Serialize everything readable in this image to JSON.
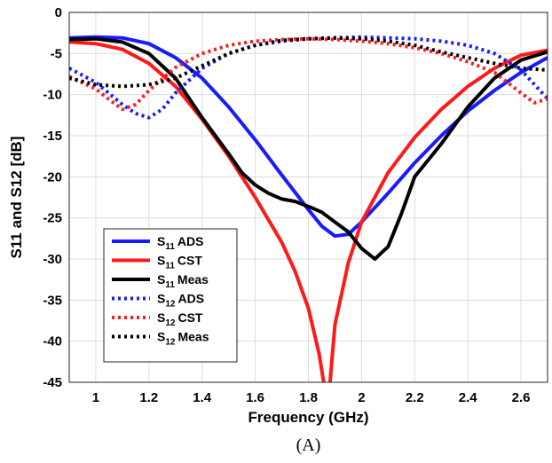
{
  "chart_data": {
    "type": "line",
    "title": "",
    "caption": "(A)",
    "xlabel": "Frequency (GHz)",
    "ylabel": "S11 and S12 [dB]",
    "xlim": [
      0.9,
      2.7
    ],
    "ylim": [
      -45,
      0
    ],
    "grid": true,
    "legend_position": "bottom-left",
    "xticks": [
      1,
      1.2,
      1.4,
      1.6,
      1.8,
      2,
      2.2,
      2.4,
      2.6
    ],
    "yticks": [
      0,
      -5,
      -10,
      -15,
      -20,
      -25,
      -30,
      -35,
      -40,
      -45
    ],
    "series": [
      {
        "name_main": "S",
        "name_sub": "11",
        "name_tail": "ADS",
        "color": "#1a1aff",
        "dash": "solid",
        "points": [
          [
            0.9,
            -3.1
          ],
          [
            1.0,
            -3.0
          ],
          [
            1.1,
            -3.1
          ],
          [
            1.2,
            -3.8
          ],
          [
            1.3,
            -5.5
          ],
          [
            1.4,
            -8.0
          ],
          [
            1.5,
            -11.5
          ],
          [
            1.6,
            -15.5
          ],
          [
            1.7,
            -19.8
          ],
          [
            1.8,
            -24.0
          ],
          [
            1.85,
            -26.0
          ],
          [
            1.9,
            -27.2
          ],
          [
            1.95,
            -27.0
          ],
          [
            2.0,
            -25.5
          ],
          [
            2.1,
            -22.0
          ],
          [
            2.2,
            -18.3
          ],
          [
            2.3,
            -15.0
          ],
          [
            2.4,
            -12.0
          ],
          [
            2.5,
            -9.5
          ],
          [
            2.6,
            -7.3
          ],
          [
            2.7,
            -5.5
          ]
        ]
      },
      {
        "name_main": "S",
        "name_sub": "11",
        "name_tail": "CST",
        "color": "#ff1a1a",
        "dash": "solid",
        "points": [
          [
            0.9,
            -3.6
          ],
          [
            1.0,
            -3.8
          ],
          [
            1.1,
            -4.5
          ],
          [
            1.2,
            -6.2
          ],
          [
            1.3,
            -9.0
          ],
          [
            1.4,
            -13.0
          ],
          [
            1.5,
            -17.5
          ],
          [
            1.6,
            -22.5
          ],
          [
            1.7,
            -28.0
          ],
          [
            1.75,
            -31.5
          ],
          [
            1.8,
            -36.0
          ],
          [
            1.84,
            -41.5
          ],
          [
            1.86,
            -45.5
          ],
          [
            1.87,
            -47.0
          ],
          [
            1.88,
            -45.5
          ],
          [
            1.9,
            -38.0
          ],
          [
            1.95,
            -30.5
          ],
          [
            2.0,
            -25.5
          ],
          [
            2.1,
            -19.5
          ],
          [
            2.2,
            -15.2
          ],
          [
            2.3,
            -11.8
          ],
          [
            2.4,
            -9.0
          ],
          [
            2.5,
            -6.8
          ],
          [
            2.6,
            -5.2
          ],
          [
            2.7,
            -4.6
          ]
        ]
      },
      {
        "name_main": "S",
        "name_sub": "11",
        "name_tail": "Meas",
        "color": "#000000",
        "dash": "solid",
        "points": [
          [
            0.9,
            -3.3
          ],
          [
            1.0,
            -3.2
          ],
          [
            1.1,
            -3.6
          ],
          [
            1.2,
            -5.0
          ],
          [
            1.3,
            -8.0
          ],
          [
            1.4,
            -12.8
          ],
          [
            1.5,
            -17.2
          ],
          [
            1.55,
            -19.5
          ],
          [
            1.6,
            -21.0
          ],
          [
            1.65,
            -22.0
          ],
          [
            1.7,
            -22.7
          ],
          [
            1.75,
            -23.0
          ],
          [
            1.8,
            -23.6
          ],
          [
            1.85,
            -24.3
          ],
          [
            1.9,
            -25.5
          ],
          [
            1.95,
            -26.7
          ],
          [
            2.0,
            -28.7
          ],
          [
            2.05,
            -30.0
          ],
          [
            2.1,
            -28.5
          ],
          [
            2.15,
            -24.5
          ],
          [
            2.2,
            -20.0
          ],
          [
            2.3,
            -16.0
          ],
          [
            2.4,
            -11.5
          ],
          [
            2.5,
            -8.0
          ],
          [
            2.6,
            -5.8
          ],
          [
            2.7,
            -4.8
          ]
        ]
      },
      {
        "name_main": "S",
        "name_sub": "12",
        "name_tail": "ADS",
        "color": "#1a1aff",
        "dash": "dotted",
        "points": [
          [
            0.9,
            -6.8
          ],
          [
            1.0,
            -8.5
          ],
          [
            1.1,
            -11.2
          ],
          [
            1.15,
            -12.3
          ],
          [
            1.2,
            -12.8
          ],
          [
            1.25,
            -11.8
          ],
          [
            1.3,
            -9.8
          ],
          [
            1.4,
            -6.8
          ],
          [
            1.5,
            -5.0
          ],
          [
            1.6,
            -4.0
          ],
          [
            1.7,
            -3.5
          ],
          [
            1.8,
            -3.2
          ],
          [
            1.9,
            -3.1
          ],
          [
            2.0,
            -3.0
          ],
          [
            2.1,
            -3.1
          ],
          [
            2.2,
            -3.2
          ],
          [
            2.3,
            -3.5
          ],
          [
            2.4,
            -4.0
          ],
          [
            2.5,
            -5.0
          ],
          [
            2.6,
            -7.0
          ],
          [
            2.7,
            -10.5
          ]
        ]
      },
      {
        "name_main": "S",
        "name_sub": "12",
        "name_tail": "CST",
        "color": "#ff1a1a",
        "dash": "dotted",
        "points": [
          [
            0.9,
            -7.8
          ],
          [
            1.0,
            -9.3
          ],
          [
            1.05,
            -10.6
          ],
          [
            1.1,
            -11.8
          ],
          [
            1.15,
            -11.2
          ],
          [
            1.2,
            -9.5
          ],
          [
            1.3,
            -6.7
          ],
          [
            1.4,
            -5.0
          ],
          [
            1.5,
            -4.0
          ],
          [
            1.6,
            -3.5
          ],
          [
            1.7,
            -3.3
          ],
          [
            1.8,
            -3.2
          ],
          [
            1.9,
            -3.3
          ],
          [
            2.0,
            -3.5
          ],
          [
            2.1,
            -3.8
          ],
          [
            2.2,
            -4.3
          ],
          [
            2.3,
            -5.0
          ],
          [
            2.4,
            -6.0
          ],
          [
            2.5,
            -7.3
          ],
          [
            2.6,
            -9.8
          ],
          [
            2.65,
            -11.0
          ],
          [
            2.7,
            -10.5
          ]
        ]
      },
      {
        "name_main": "S",
        "name_sub": "12",
        "name_tail": "Meas",
        "color": "#000000",
        "dash": "dotted",
        "points": [
          [
            0.9,
            -8.0
          ],
          [
            1.0,
            -8.8
          ],
          [
            1.1,
            -9.0
          ],
          [
            1.2,
            -8.8
          ],
          [
            1.3,
            -8.0
          ],
          [
            1.4,
            -6.5
          ],
          [
            1.5,
            -5.0
          ],
          [
            1.6,
            -4.0
          ],
          [
            1.7,
            -3.4
          ],
          [
            1.8,
            -3.2
          ],
          [
            1.9,
            -3.1
          ],
          [
            2.0,
            -3.2
          ],
          [
            2.1,
            -3.5
          ],
          [
            2.2,
            -4.0
          ],
          [
            2.3,
            -4.8
          ],
          [
            2.4,
            -5.5
          ],
          [
            2.5,
            -6.2
          ],
          [
            2.6,
            -6.8
          ],
          [
            2.7,
            -7.0
          ]
        ]
      }
    ]
  }
}
